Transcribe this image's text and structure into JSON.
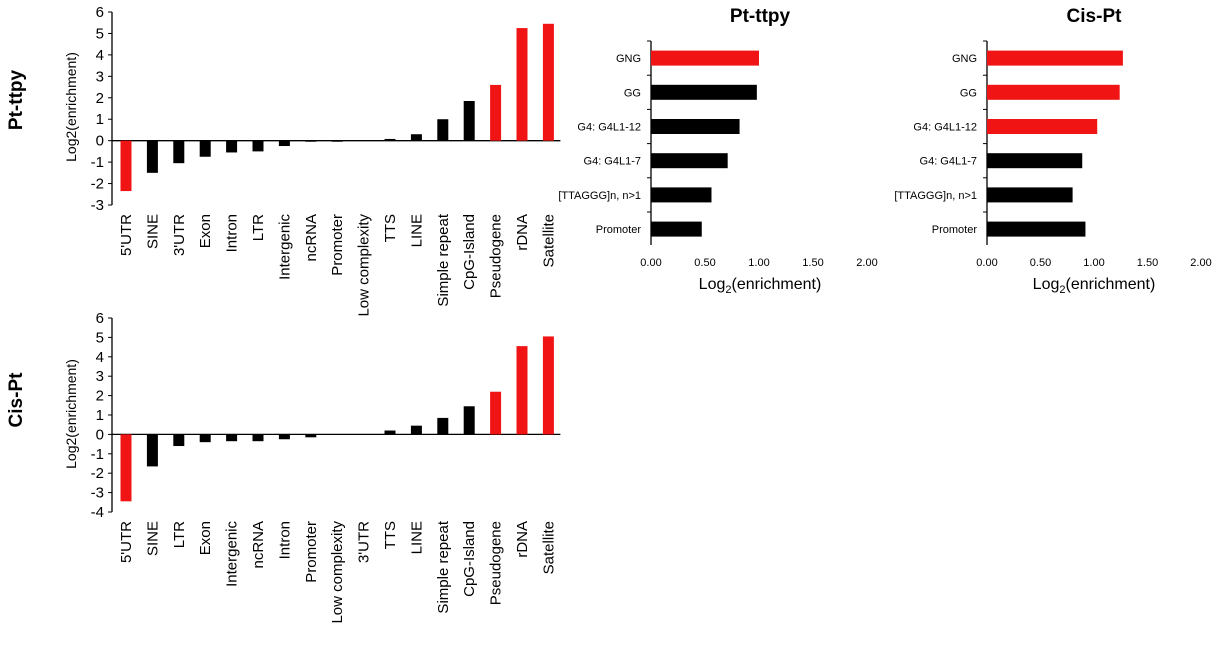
{
  "colors": {
    "highlight": "#f01414",
    "default": "#000000"
  },
  "chart_data": [
    {
      "type": "bar",
      "orientation": "vertical",
      "row_label": "Pt-ttpy",
      "ylabel": "Log2(enrichment)",
      "ylim": [
        -3,
        6
      ],
      "yticks": [
        6,
        5,
        4,
        3,
        2,
        1,
        0,
        -1,
        -2,
        -3
      ],
      "categories": [
        "5'UTR",
        "SINE",
        "3'UTR",
        "Exon",
        "Intron",
        "LTR",
        "Intergenic",
        "ncRNA",
        "Promoter",
        "Low complexity",
        "TTS",
        "LINE",
        "Simple repeat",
        "CpG-Island",
        "Pseudogene",
        "rDNA",
        "Satellite"
      ],
      "values": [
        -2.35,
        -1.5,
        -1.05,
        -0.75,
        -0.55,
        -0.5,
        -0.25,
        -0.05,
        -0.05,
        0.0,
        0.08,
        0.3,
        1.0,
        1.85,
        2.6,
        5.25,
        5.45
      ],
      "highlighted": [
        true,
        false,
        false,
        false,
        false,
        false,
        false,
        false,
        false,
        false,
        false,
        false,
        false,
        false,
        true,
        true,
        true
      ]
    },
    {
      "type": "bar",
      "orientation": "vertical",
      "row_label": "Cis-Pt",
      "ylabel": "Log2(enrichment)",
      "ylim": [
        -4,
        6
      ],
      "yticks": [
        6,
        5,
        4,
        3,
        2,
        1,
        0,
        -1,
        -2,
        -3,
        -4
      ],
      "categories": [
        "5'UTR",
        "SINE",
        "LTR",
        "Exon",
        "Intergenic",
        "ncRNA",
        "Intron",
        "Promoter",
        "Low complexity",
        "3'UTR",
        "TTS",
        "LINE",
        "Simple repeat",
        "CpG-Island",
        "Pseudogene",
        "rDNA",
        "Satellite"
      ],
      "values": [
        -3.45,
        -1.65,
        -0.6,
        -0.4,
        -0.35,
        -0.35,
        -0.25,
        -0.15,
        0.0,
        0.0,
        0.2,
        0.45,
        0.85,
        1.45,
        2.2,
        4.55,
        5.05
      ],
      "highlighted": [
        true,
        false,
        false,
        false,
        false,
        false,
        false,
        false,
        false,
        false,
        false,
        false,
        false,
        false,
        true,
        true,
        true
      ]
    },
    {
      "type": "bar",
      "orientation": "horizontal",
      "title": "Pt-ttpy",
      "xlabel": "Log2(enrichment)",
      "xlim": [
        0,
        2
      ],
      "xticks": [
        "0.00",
        "0.50",
        "1.00",
        "1.50",
        "2.00"
      ],
      "categories": [
        "GNG",
        "GG",
        "G4: G4L1-12",
        "G4: G4L1-7",
        "[TTAGGG]n, n>1",
        "Promoter"
      ],
      "values": [
        1.0,
        0.98,
        0.82,
        0.71,
        0.56,
        0.47
      ],
      "highlighted": [
        true,
        false,
        false,
        false,
        false,
        false
      ]
    },
    {
      "type": "bar",
      "orientation": "horizontal",
      "title": "Cis-Pt",
      "xlabel": "Log2(enrichment)",
      "xlim": [
        0,
        2
      ],
      "xticks": [
        "0.00",
        "0.50",
        "1.00",
        "1.50",
        "2.00"
      ],
      "categories": [
        "GNG",
        "GG",
        "G4: G4L1-12",
        "G4: G4L1-7",
        "[TTAGGG]n, n>1",
        "Promoter"
      ],
      "values": [
        1.27,
        1.24,
        1.03,
        0.89,
        0.8,
        0.92
      ],
      "highlighted": [
        true,
        true,
        true,
        false,
        false,
        false
      ]
    }
  ]
}
